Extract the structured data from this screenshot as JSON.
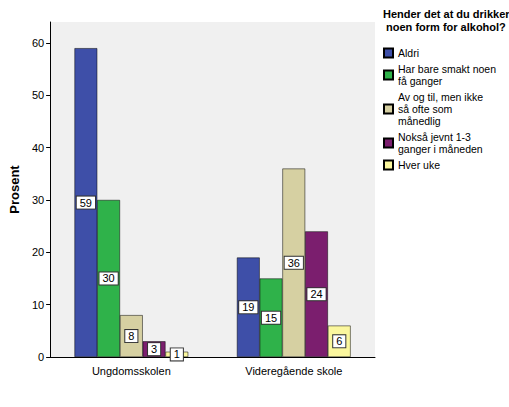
{
  "chart_data": {
    "type": "bar",
    "legend_title": "Hender det at du drikker noen form for alkohol?",
    "y_label": "Prosent",
    "categories": [
      "Ungdomsskolen",
      "Videregående skole"
    ],
    "series": [
      {
        "name": "Aldri",
        "color": "#3e4fa8",
        "values": [
          59,
          19
        ]
      },
      {
        "name": "Har bare smakt noen få ganger",
        "color": "#2fb24a",
        "values": [
          30,
          15
        ]
      },
      {
        "name": "Av og til, men ikke så ofte som månedlig",
        "color": "#d6d0a2",
        "values": [
          8,
          36
        ]
      },
      {
        "name": "Nokså jevnt 1-3 ganger i måneden",
        "color": "#7b1e6e",
        "values": [
          3,
          24
        ]
      },
      {
        "name": "Hver uke",
        "color": "#fbf79e",
        "values": [
          1,
          6
        ]
      }
    ],
    "ylim": [
      0,
      64
    ],
    "yticks": [
      0,
      10,
      20,
      30,
      40,
      50,
      60
    ],
    "grid": false,
    "legend": "right",
    "data_labels": true
  }
}
